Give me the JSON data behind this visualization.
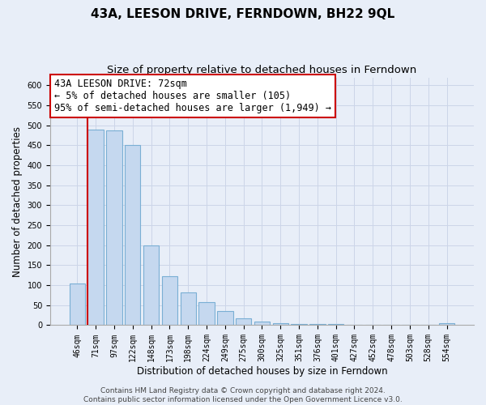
{
  "title": "43A, LEESON DRIVE, FERNDOWN, BH22 9QL",
  "subtitle": "Size of property relative to detached houses in Ferndown",
  "xlabel": "Distribution of detached houses by size in Ferndown",
  "ylabel": "Number of detached properties",
  "bar_labels": [
    "46sqm",
    "71sqm",
    "97sqm",
    "122sqm",
    "148sqm",
    "173sqm",
    "198sqm",
    "224sqm",
    "249sqm",
    "275sqm",
    "300sqm",
    "325sqm",
    "351sqm",
    "376sqm",
    "401sqm",
    "427sqm",
    "452sqm",
    "478sqm",
    "503sqm",
    "528sqm",
    "554sqm"
  ],
  "bar_values": [
    105,
    490,
    487,
    450,
    200,
    123,
    83,
    57,
    35,
    17,
    10,
    5,
    3,
    2,
    2,
    1,
    1,
    1,
    0,
    0,
    5
  ],
  "bar_color": "#c5d8ef",
  "bar_edge_color": "#7aafd4",
  "annotation_line1": "43A LEESON DRIVE: 72sqm",
  "annotation_line2": "← 5% of detached houses are smaller (105)",
  "annotation_line3": "95% of semi-detached houses are larger (1,949) →",
  "annotation_box_facecolor": "#ffffff",
  "annotation_box_edgecolor": "#cc0000",
  "red_line_x": 1,
  "ylim": [
    0,
    620
  ],
  "yticks": [
    0,
    50,
    100,
    150,
    200,
    250,
    300,
    350,
    400,
    450,
    500,
    550,
    600
  ],
  "grid_color": "#ccd5e8",
  "background_color": "#e8eef8",
  "title_fontsize": 11,
  "subtitle_fontsize": 9.5,
  "annotation_fontsize": 8.5,
  "ylabel_fontsize": 8.5,
  "xlabel_fontsize": 8.5,
  "tick_fontsize": 7,
  "footer_fontsize": 6.5,
  "footer_text": "Contains HM Land Registry data © Crown copyright and database right 2024.\nContains public sector information licensed under the Open Government Licence v3.0."
}
